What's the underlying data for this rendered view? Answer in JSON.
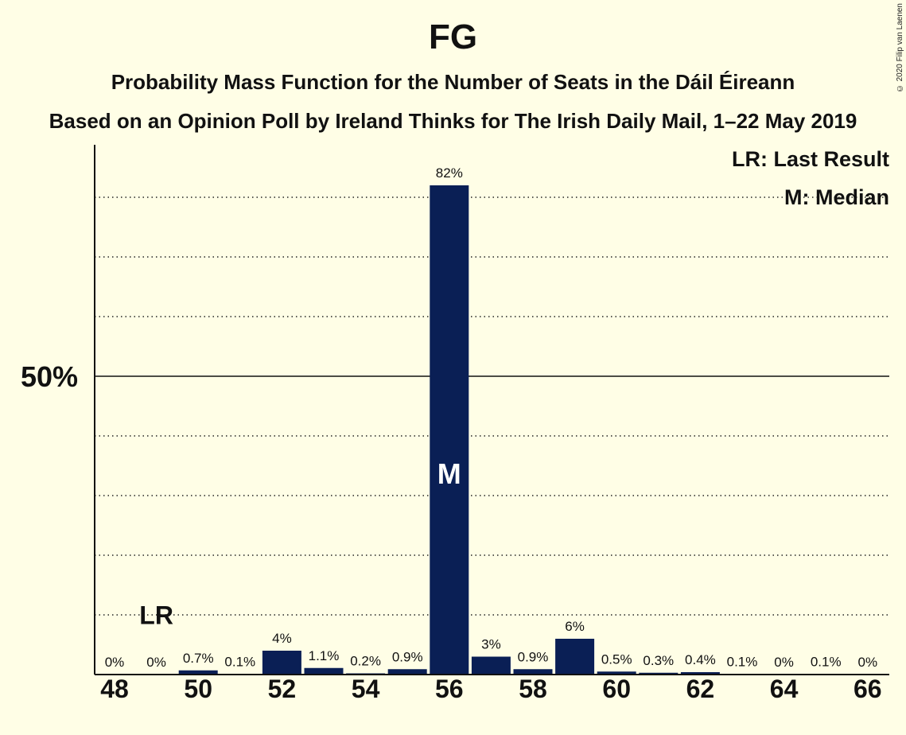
{
  "chart_data": {
    "type": "bar",
    "title": "FG",
    "subtitle_line1": "Probability Mass Function for the Number of Seats in the Dáil Éireann",
    "subtitle_line2": "Based on an Opinion Poll by Ireland Thinks for The Irish Daily Mail, 1–22 May 2019",
    "categories": [
      48,
      49,
      50,
      51,
      52,
      53,
      54,
      55,
      56,
      57,
      58,
      59,
      60,
      61,
      62,
      63,
      64,
      65,
      66
    ],
    "x_tick_labels": [
      "48",
      "50",
      "52",
      "54",
      "56",
      "58",
      "60",
      "62",
      "64",
      "66"
    ],
    "values": [
      0,
      0,
      0.7,
      0.1,
      4,
      1.1,
      0.2,
      0.9,
      82,
      3,
      0.9,
      6,
      0.5,
      0.3,
      0.4,
      0.1,
      0,
      0.1,
      0
    ],
    "value_labels": [
      "0%",
      "0%",
      "0.7%",
      "0.1%",
      "4%",
      "1.1%",
      "0.2%",
      "0.9%",
      "82%",
      "3%",
      "0.9%",
      "6%",
      "0.5%",
      "0.3%",
      "0.4%",
      "0.1%",
      "0%",
      "0.1%",
      "0%"
    ],
    "ylim": [
      0,
      89
    ],
    "y_tick_label": "50%",
    "y_tick_value": 50,
    "gridlines_dotted": [
      10,
      20,
      30,
      40,
      60,
      70,
      80
    ],
    "last_result_seat": 49,
    "last_result_label": "LR",
    "median_seat": 56,
    "median_label": "M",
    "legend": [
      "LR: Last Result",
      "M: Median"
    ],
    "legend_position": "top-right",
    "bar_color": "#0A1F55",
    "background_color": "#FFFEE6"
  },
  "copyright": "© 2020 Filip van Laenen"
}
